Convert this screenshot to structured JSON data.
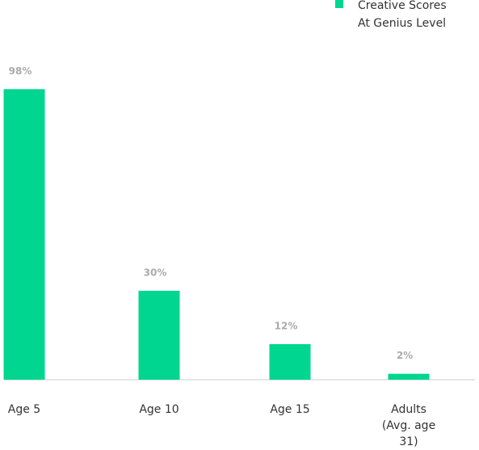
{
  "chart_data": {
    "type": "bar",
    "categories": [
      "Age 5",
      "Age 10",
      "Age 15",
      "Adults\n(Avg. age 31)"
    ],
    "series": [
      {
        "name": "Creative Scores\nAt Genius Level",
        "color": "#00d68f",
        "values": [
          98,
          30,
          12,
          2
        ],
        "value_labels": [
          "98%",
          "30%",
          "12%",
          "2%"
        ]
      }
    ],
    "ylim": [
      0,
      100
    ]
  }
}
